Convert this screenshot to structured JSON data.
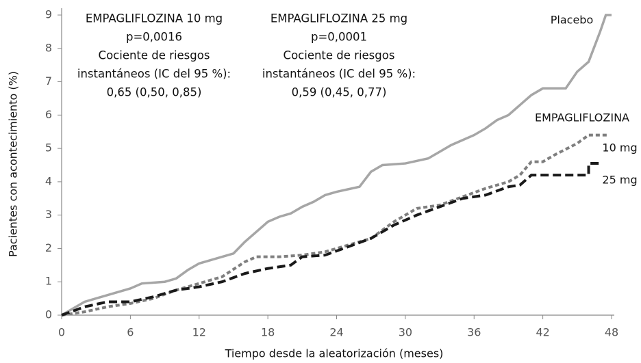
{
  "chart_data": {
    "type": "line",
    "xlabel": "Tiempo desde la aleatorización (meses)",
    "ylabel": "Pacientes con acontecimiento (%)",
    "xlim": [
      0,
      48
    ],
    "ylim": [
      0,
      9
    ],
    "xticks": [
      0,
      6,
      12,
      18,
      24,
      30,
      36,
      42,
      48
    ],
    "yticks": [
      0,
      1,
      2,
      3,
      4,
      5,
      6,
      7,
      8,
      9
    ],
    "annotations": [
      [
        "EMPAGLIFLOZINA 10 mg",
        "p=0,0016",
        "Cociente de riesgos",
        "instantáneos (IC del 95 %):",
        "0,65 (0,50, 0,85)"
      ],
      [
        "EMPAGLIFLOZINA 25 mg",
        "p=0,0001",
        "Cociente de riesgos",
        "instantáneos (IC del 95 %):",
        "0,59 (0,45, 0,77)"
      ]
    ],
    "group_label": "EMPAGLIFLOZINA",
    "series": [
      {
        "name": "Placebo",
        "color": "#a6a6a6",
        "style": "solid",
        "x": [
          0,
          1,
          2,
          3,
          4,
          5,
          6,
          7,
          9,
          10,
          11,
          12,
          13,
          14,
          15,
          16,
          17,
          18,
          19,
          20,
          21,
          22,
          23,
          24,
          26,
          27,
          28,
          30,
          32,
          34,
          36,
          37,
          38,
          39,
          40,
          41,
          42,
          44,
          45,
          46,
          47,
          47.5,
          48
        ],
        "values": [
          0,
          0.2,
          0.4,
          0.5,
          0.6,
          0.7,
          0.8,
          0.95,
          1.0,
          1.1,
          1.35,
          1.55,
          1.65,
          1.75,
          1.85,
          2.2,
          2.5,
          2.8,
          2.95,
          3.05,
          3.25,
          3.4,
          3.6,
          3.7,
          3.85,
          4.3,
          4.5,
          4.55,
          4.7,
          5.1,
          5.4,
          5.6,
          5.85,
          6.0,
          6.3,
          6.6,
          6.8,
          6.8,
          7.3,
          7.6,
          8.5,
          9.0,
          9.0
        ]
      },
      {
        "name": "10 mg",
        "color": "#7f7f7f",
        "style": "dotted",
        "x": [
          0,
          2,
          4,
          6,
          8,
          10,
          12,
          14,
          16,
          17,
          19,
          21,
          23,
          25,
          27,
          29,
          31,
          33,
          35,
          37,
          39,
          40,
          41,
          42,
          43,
          45,
          46,
          47.7
        ],
        "values": [
          0,
          0.1,
          0.25,
          0.35,
          0.5,
          0.75,
          0.95,
          1.15,
          1.6,
          1.75,
          1.75,
          1.8,
          1.9,
          2.1,
          2.3,
          2.8,
          3.2,
          3.3,
          3.55,
          3.8,
          4.0,
          4.2,
          4.6,
          4.6,
          4.8,
          5.15,
          5.4,
          5.4
        ]
      },
      {
        "name": "25 mg",
        "color": "#1a1a1a",
        "style": "dashed",
        "x": [
          0,
          2,
          4,
          6,
          8,
          10,
          12,
          14,
          16,
          18,
          20,
          21,
          23,
          25,
          27,
          29,
          31,
          33,
          35,
          37,
          39,
          40,
          41,
          45,
          46,
          46,
          47
        ],
        "values": [
          0,
          0.25,
          0.4,
          0.4,
          0.55,
          0.75,
          0.85,
          1.0,
          1.25,
          1.4,
          1.5,
          1.75,
          1.8,
          2.05,
          2.3,
          2.7,
          3.0,
          3.25,
          3.5,
          3.6,
          3.85,
          3.9,
          4.2,
          4.2,
          4.2,
          4.55,
          4.55
        ]
      }
    ]
  }
}
